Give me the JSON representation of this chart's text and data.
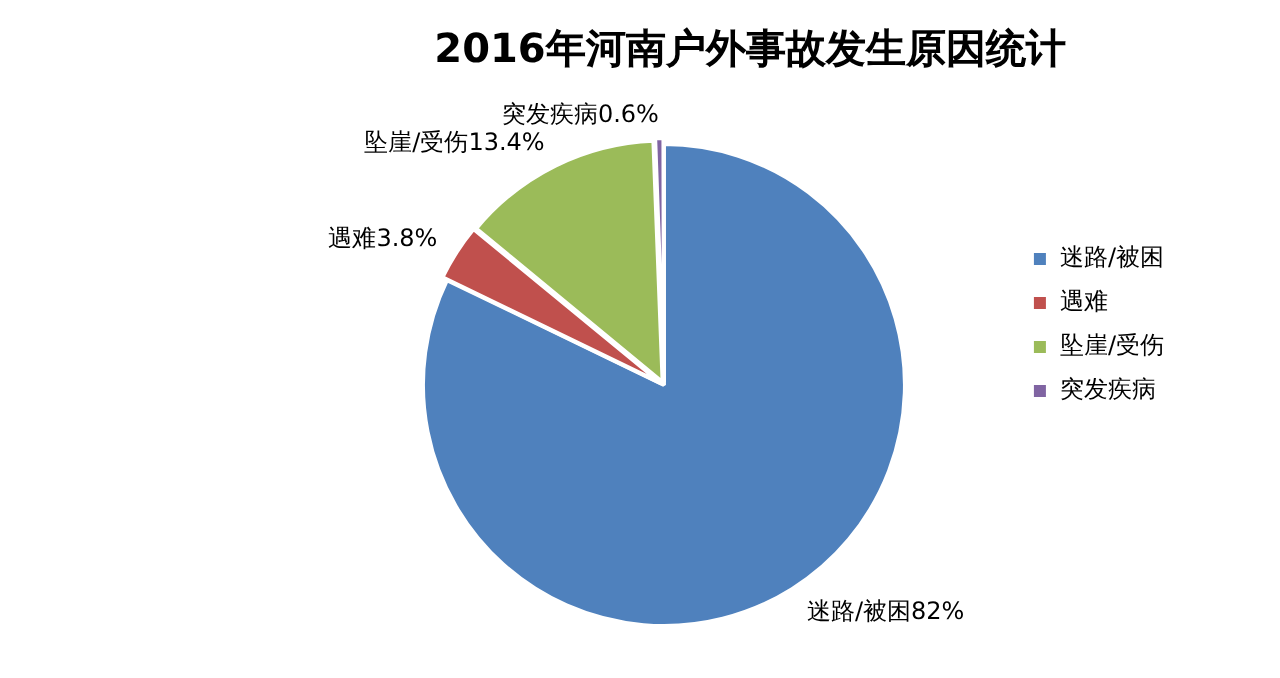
{
  "chart_data": {
    "type": "pie",
    "title": "2016年河南户外事故发生原因统计",
    "categories": [
      "迷路/被困",
      "遇难",
      "坠崖/受伤",
      "突发疾病"
    ],
    "values": [
      82,
      3.8,
      13.4,
      0.6
    ],
    "colors": [
      "#4f81bd",
      "#c0504d",
      "#9bbb59",
      "#8064a2"
    ],
    "value_labels": [
      "82%",
      "3.8%",
      "13.4%",
      "0.6%"
    ],
    "legend": "right"
  }
}
